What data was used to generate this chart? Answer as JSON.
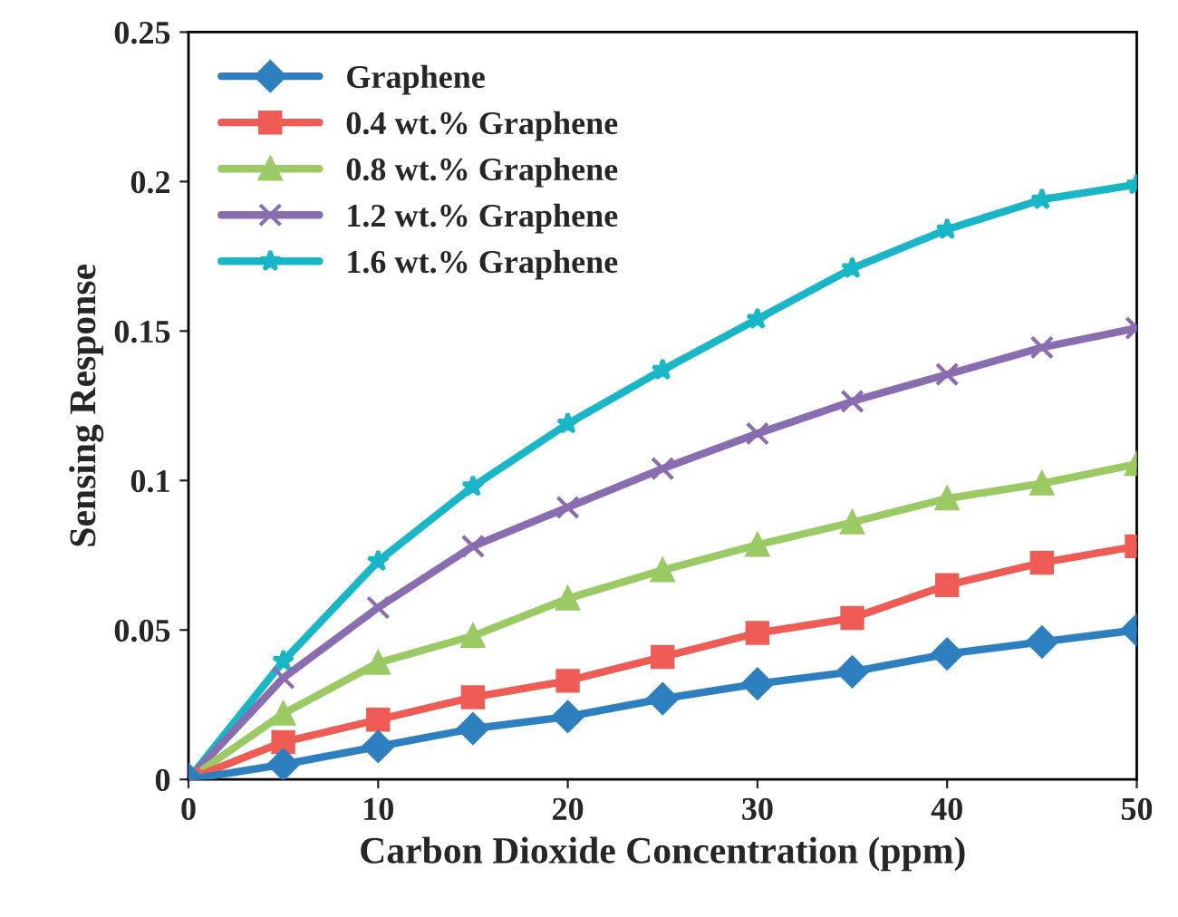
{
  "chart_data": {
    "type": "line",
    "xlabel": "Carbon Dioxide Concentration (ppm)",
    "ylabel": "Sensing Response",
    "x": [
      0,
      5,
      10,
      15,
      20,
      25,
      30,
      35,
      40,
      45,
      50
    ],
    "series": [
      {
        "name": "Graphene",
        "color": "#2e7fc0",
        "marker": "diamond",
        "values": [
          0,
          0.005,
          0.011,
          0.017,
          0.021,
          0.027,
          0.032,
          0.036,
          0.042,
          0.046,
          0.05
        ]
      },
      {
        "name": "0.4 wt.% Graphene",
        "color": "#ef5b55",
        "marker": "square",
        "values": [
          0,
          0.0125,
          0.02,
          0.0275,
          0.033,
          0.041,
          0.049,
          0.054,
          0.065,
          0.0725,
          0.078
        ]
      },
      {
        "name": "0.8 wt.% Graphene",
        "color": "#9bc963",
        "marker": "triangle",
        "values": [
          0,
          0.022,
          0.039,
          0.048,
          0.0605,
          0.07,
          0.0785,
          0.086,
          0.094,
          0.099,
          0.1055
        ]
      },
      {
        "name": "1.2 wt.% Graphene",
        "color": "#8a6db0",
        "marker": "cross",
        "values": [
          0,
          0.034,
          0.0575,
          0.078,
          0.091,
          0.104,
          0.1157,
          0.1265,
          0.1355,
          0.1445,
          0.151
        ]
      },
      {
        "name": "1.6 wt.% Graphene",
        "color": "#18b6c6",
        "marker": "star",
        "values": [
          0,
          0.0396,
          0.073,
          0.098,
          0.119,
          0.137,
          0.154,
          0.171,
          0.184,
          0.194,
          0.199
        ]
      }
    ],
    "xlim": [
      0,
      50
    ],
    "xticks": [
      0,
      10,
      20,
      30,
      40,
      50
    ],
    "ylim": [
      0,
      0.25
    ],
    "yticks": [
      0,
      0.05,
      0.1,
      0.15,
      0.2,
      0.25
    ],
    "grid": false,
    "legend": "top left"
  }
}
